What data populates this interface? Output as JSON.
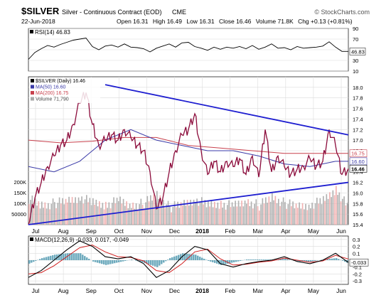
{
  "header": {
    "symbol": "$SILVER",
    "description": "Silver - Continuous Contract (EOD)",
    "exchange": "CME",
    "credit": "© StockCharts.com",
    "date": "22-Jun-2018",
    "quote": {
      "open_label": "Open",
      "open": "16.31",
      "high_label": "High",
      "high": "16.49",
      "low_label": "Low",
      "low": "16.31",
      "close_label": "Close",
      "close": "16.46",
      "volume_label": "Volume",
      "volume": "71.8K",
      "chg_label": "Chg",
      "chg": "+0.13 (+0.81%)"
    }
  },
  "colors": {
    "price": "#8b0a3a",
    "price_up": "#000000",
    "ma50": "#3a3aa8",
    "ma200": "#c8404c",
    "trendline": "#1e1ed0",
    "rsi": "#000000",
    "macd": "#000000",
    "signal": "#d02020",
    "histogram": "#3f8fa8",
    "volume_up": "#a9a9a9",
    "volume_down": "#f0a8a8",
    "grid": "#dcdcdc"
  },
  "chart_data": [
    {
      "panel": "rsi",
      "type": "line",
      "legend": "RSI(14) 46.83",
      "ylim": [
        10,
        90
      ],
      "ticks": [
        "90",
        "70",
        "50",
        "30",
        "10"
      ],
      "current_label": "46.83",
      "x": [
        0,
        5,
        10,
        15,
        20,
        25,
        30,
        35,
        40,
        45,
        50,
        55,
        60,
        65,
        70,
        75,
        80,
        85,
        90,
        95,
        100,
        105,
        110,
        115,
        120,
        125,
        130,
        135,
        140,
        145,
        150,
        155,
        160,
        165,
        170,
        175,
        180,
        185,
        190,
        195,
        200,
        205,
        210,
        215,
        220,
        225,
        230,
        235,
        240,
        245,
        250
      ],
      "values": [
        32,
        45,
        52,
        58,
        55,
        60,
        64,
        68,
        70,
        72,
        56,
        50,
        57,
        59,
        55,
        61,
        55,
        54,
        52,
        46,
        53,
        57,
        61,
        55,
        63,
        64,
        56,
        53,
        49,
        55,
        51,
        55,
        53,
        56,
        52,
        58,
        51,
        55,
        61,
        53,
        54,
        50,
        56,
        53,
        54,
        55,
        57,
        65,
        55,
        47,
        47
      ]
    },
    {
      "panel": "price",
      "type": "line",
      "legend": [
        {
          "label": "$SILVER (Daily) 16.46",
          "color": "#000000"
        },
        {
          "label": "MA(50) 16.60",
          "color": "#3a3aa8"
        },
        {
          "label": "MA(200) 16.75",
          "color": "#c8404c"
        },
        {
          "label": "Volume 71,790",
          "color": "#a9a9a9"
        }
      ],
      "ylim": [
        15.4,
        18.2
      ],
      "yticks": [
        "18.0",
        "17.8",
        "17.6",
        "17.4",
        "17.2",
        "17.0",
        "16.8",
        "16.6",
        "16.4",
        "16.2",
        "16.0",
        "15.8",
        "15.6",
        "15.4"
      ],
      "xticks": [
        "Jul",
        "Aug",
        "Sep",
        "Oct",
        "Nov",
        "Dec",
        "2018",
        "Feb",
        "Mar",
        "Apr",
        "May",
        "Jun"
      ],
      "value_labels": [
        "16.75",
        "16.60",
        "16.46"
      ],
      "volume_ticks": [
        "200K",
        "150K",
        "100K",
        "50000"
      ],
      "volume_current": "71790",
      "series": [
        {
          "name": "$SILVER (Daily)",
          "x": [
            0,
            5,
            10,
            15,
            20,
            25,
            30,
            35,
            40,
            45,
            50,
            55,
            60,
            65,
            70,
            75,
            80,
            85,
            90,
            95,
            100,
            105,
            110,
            115,
            120,
            125,
            130,
            135,
            140,
            145,
            150,
            155,
            160,
            165,
            170,
            175,
            180,
            185,
            190,
            195,
            200,
            205,
            210,
            215,
            220,
            225,
            230,
            235,
            240,
            245,
            250
          ],
          "values": [
            15.4,
            15.9,
            16.2,
            16.5,
            16.7,
            16.9,
            17.0,
            17.3,
            17.7,
            17.9,
            17.3,
            16.9,
            17.0,
            17.1,
            17.0,
            17.2,
            17.05,
            16.9,
            16.8,
            16.4,
            15.7,
            15.9,
            16.4,
            16.8,
            17.1,
            17.2,
            17.5,
            16.8,
            16.35,
            16.6,
            16.4,
            16.6,
            16.5,
            16.65,
            16.35,
            16.7,
            16.3,
            17.2,
            16.4,
            16.7,
            16.5,
            16.35,
            16.45,
            16.5,
            16.65,
            16.5,
            16.6,
            17.2,
            16.9,
            16.35,
            16.46
          ]
        },
        {
          "name": "MA(50)",
          "x": [
            0,
            20,
            40,
            60,
            80,
            100,
            120,
            140,
            160,
            180,
            200,
            220,
            240,
            250
          ],
          "values": [
            16.5,
            16.4,
            16.6,
            17.0,
            17.2,
            17.0,
            16.9,
            16.8,
            16.8,
            16.7,
            16.55,
            16.5,
            16.6,
            16.6
          ]
        },
        {
          "name": "MA(200)",
          "x": [
            0,
            25,
            50,
            75,
            100,
            125,
            150,
            175,
            200,
            225,
            250
          ],
          "values": [
            17.0,
            16.95,
            16.98,
            17.05,
            17.05,
            16.9,
            16.85,
            16.8,
            16.75,
            16.75,
            16.75
          ]
        },
        {
          "name": "Volume",
          "x": [
            0,
            10,
            20,
            30,
            40,
            50,
            60,
            70,
            80,
            90,
            100,
            110,
            120,
            130,
            140,
            150,
            160,
            170,
            180,
            190,
            200,
            210,
            220,
            230,
            240,
            250
          ],
          "values": [
            120000,
            90000,
            100000,
            110000,
            130000,
            100000,
            95000,
            110000,
            90000,
            100000,
            140000,
            80000,
            95000,
            120000,
            90000,
            100000,
            85000,
            110000,
            90000,
            130000,
            100000,
            85000,
            95000,
            110000,
            170000,
            71790
          ]
        }
      ],
      "trendlines": [
        {
          "from": [
            60,
            18.05
          ],
          "to": [
            250,
            17.1
          ]
        },
        {
          "from": [
            0,
            15.4
          ],
          "to": [
            250,
            16.2
          ]
        }
      ]
    },
    {
      "panel": "macd",
      "type": "line",
      "legend": "MACD(12,26,9) -0.033, 0.017, -0.049",
      "ylim": [
        -0.35,
        0.35
      ],
      "ticks": [
        "0.3",
        "0.2",
        "0.1",
        "0.0",
        "-0.1",
        "-0.2",
        "-0.3"
      ],
      "current_label": "-0.033",
      "x": [
        0,
        10,
        20,
        30,
        40,
        50,
        60,
        70,
        80,
        90,
        100,
        110,
        120,
        130,
        140,
        150,
        160,
        170,
        180,
        190,
        200,
        210,
        220,
        230,
        240,
        250
      ],
      "series": [
        {
          "name": "MACD",
          "values": [
            -0.25,
            -0.15,
            0.0,
            0.15,
            0.28,
            0.2,
            0.05,
            0.02,
            0.05,
            -0.05,
            -0.25,
            -0.15,
            0.05,
            0.2,
            0.15,
            -0.05,
            -0.1,
            -0.05,
            -0.02,
            0.0,
            0.05,
            -0.02,
            -0.05,
            0.0,
            0.1,
            -0.033
          ]
        },
        {
          "name": "Signal",
          "values": [
            -0.2,
            -0.18,
            -0.08,
            0.05,
            0.18,
            0.22,
            0.12,
            0.05,
            0.04,
            -0.01,
            -0.15,
            -0.18,
            -0.05,
            0.12,
            0.16,
            0.02,
            -0.07,
            -0.06,
            -0.03,
            -0.01,
            0.03,
            0.0,
            -0.03,
            -0.01,
            0.07,
            0.017
          ]
        },
        {
          "name": "Histogram",
          "values": [
            -0.05,
            0.03,
            0.08,
            0.1,
            0.1,
            -0.02,
            -0.07,
            -0.03,
            0.01,
            -0.04,
            -0.1,
            0.03,
            0.1,
            0.08,
            -0.01,
            -0.07,
            -0.03,
            0.01,
            0.01,
            0.01,
            0.02,
            -0.02,
            -0.02,
            0.01,
            0.03,
            -0.049
          ]
        }
      ]
    }
  ]
}
